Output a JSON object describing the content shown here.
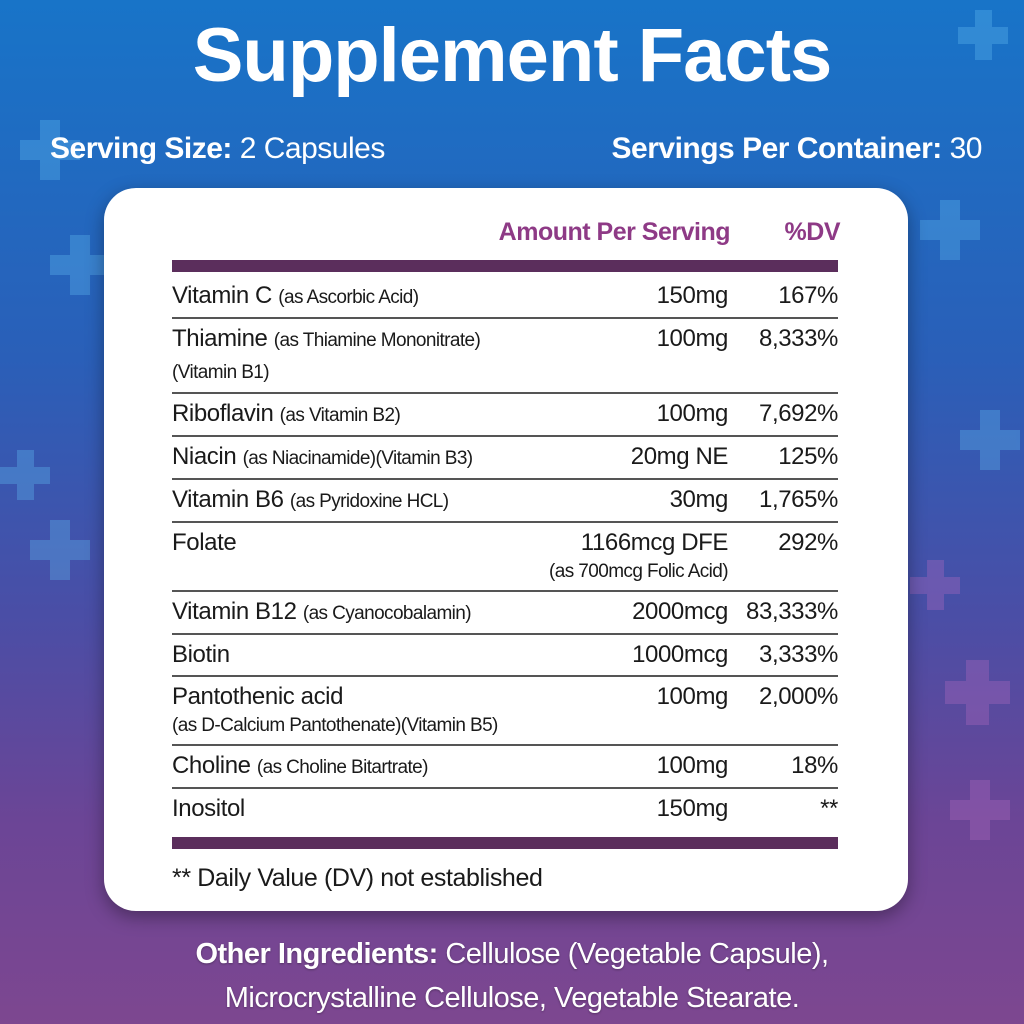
{
  "title": "Supplement Facts",
  "serving_size": {
    "label": "Serving Size:",
    "value": "2 Capsules"
  },
  "servings_per_container": {
    "label": "Servings Per Container:",
    "value": "30"
  },
  "table": {
    "headers": {
      "amount": "Amount Per Serving",
      "dv": "%DV"
    },
    "rows": [
      {
        "name": "Vitamin C",
        "detail": "(as Ascorbic Acid)",
        "amount": "150mg",
        "dv": "167%"
      },
      {
        "name": "Thiamine",
        "detail": "(as Thiamine Mononitrate)(Vitamin B1)",
        "amount": "100mg",
        "dv": "8,333%"
      },
      {
        "name": "Riboflavin",
        "detail": "(as Vitamin B2)",
        "amount": "100mg",
        "dv": "7,692%"
      },
      {
        "name": "Niacin",
        "detail": "(as Niacinamide)(Vitamin B3)",
        "amount": "20mg NE",
        "dv": "125%"
      },
      {
        "name": "Vitamin B6",
        "detail": "(as Pyridoxine HCL)",
        "amount": "30mg",
        "dv": "1,765%"
      },
      {
        "name": "Folate",
        "detail": "",
        "amount": "1166mcg DFE",
        "amount_detail": "(as 700mcg Folic Acid)",
        "dv": "292%"
      },
      {
        "name": "Vitamin B12",
        "detail": "(as Cyanocobalamin)",
        "amount": "2000mcg",
        "dv": "83,333%"
      },
      {
        "name": "Biotin",
        "detail": "",
        "amount": "1000mcg",
        "dv": "3,333%"
      },
      {
        "name": "Pantothenic acid",
        "detail": "(as D-Calcium Pantothenate)(Vitamin B5)",
        "amount": "100mg",
        "dv": "2,000%"
      },
      {
        "name": "Choline",
        "detail": "(as Choline Bitartrate)",
        "amount": "100mg",
        "dv": "18%"
      },
      {
        "name": "Inositol",
        "detail": "",
        "amount": "150mg",
        "dv": "**"
      }
    ],
    "footnote": "** Daily Value (DV) not established"
  },
  "other_ingredients": {
    "label": "Other Ingredients:",
    "line1": "Cellulose (Vegetable Capsule),",
    "line2": "Microcrystalline Cellulose, Vegetable Stearate."
  },
  "colors": {
    "header_text": "#8e3a86",
    "bar": "#5b2e5c",
    "bg_top": "#1874c8",
    "bg_bottom": "#7d4790"
  }
}
